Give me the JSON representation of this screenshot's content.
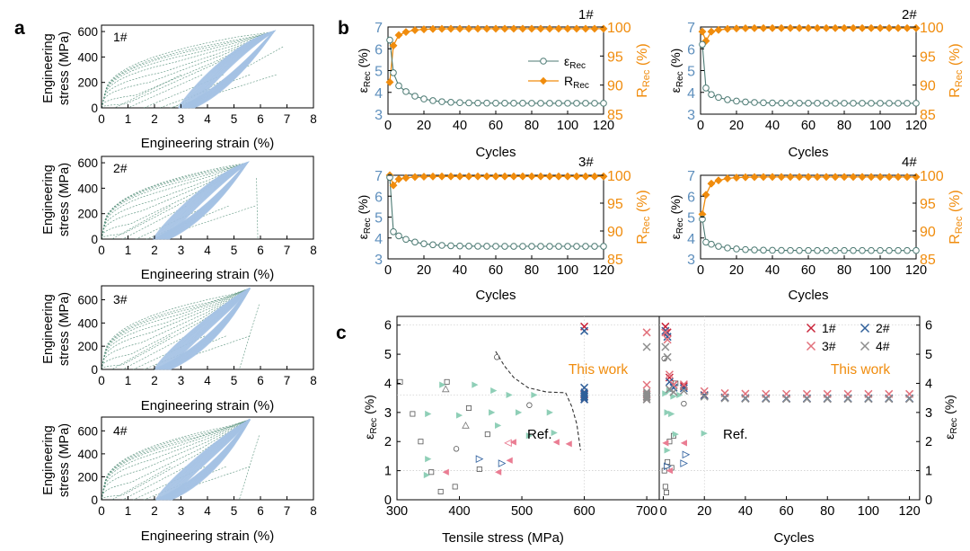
{
  "figure": {
    "panel_labels": [
      "a",
      "b",
      "c"
    ]
  },
  "colors": {
    "loop": "#a4c2e4",
    "loop_dash": "#4e8b74",
    "eps": "#4c7a73",
    "eps_axis": "#5e8fbd",
    "rr": "#f08c0d",
    "x1": "#c8243a",
    "x2": "#2f5f9a",
    "x3": "#e2717c",
    "x4": "#8d8d8d",
    "ref_green": "#8fcfb7",
    "ref_pink": "#ea7d93",
    "ref_blue": "#3c6aa5",
    "grid": "#c9c9c9"
  },
  "chart_data": [
    {
      "id": "a1",
      "type": "line",
      "annotation": "1#",
      "xlabel": "Engineering strain (%)",
      "ylabel": [
        "Engineering",
        "stress (MPa)"
      ],
      "xlim": [
        0,
        8
      ],
      "ylim": [
        0,
        650
      ],
      "xticks": [
        "0",
        "1",
        "2",
        "3",
        "4",
        "5",
        "6",
        "7",
        "8"
      ],
      "yticks": [
        "0",
        "200",
        "400",
        "600"
      ],
      "loop": {
        "residual": 2.9,
        "max_strain": 6.5,
        "max_stress": 600,
        "lower_knee": [
          4.5,
          140
        ],
        "upper_knee": [
          5.0,
          520
        ]
      },
      "loading_curves": [
        [
          0.9,
          30
        ],
        [
          1.3,
          100
        ],
        [
          1.8,
          200
        ],
        [
          2.3,
          280
        ],
        [
          2.8,
          360
        ],
        [
          3.3,
          420
        ],
        [
          3.9,
          470
        ],
        [
          4.5,
          510
        ],
        [
          5.2,
          560
        ]
      ],
      "unloading_curves": [
        [
          1.4,
          0.5
        ],
        [
          2.2,
          1.0
        ],
        [
          3.0,
          1.6
        ],
        [
          4.0,
          2.2
        ],
        [
          5.0,
          2.6
        ]
      ],
      "first_unload_bottom": 2.7
    },
    {
      "id": "a2",
      "type": "line",
      "annotation": "2#",
      "xlabel": "Engineering strain (%)",
      "ylabel": [
        "Engineering",
        "stress (MPa)"
      ],
      "xlim": [
        0,
        8
      ],
      "ylim": [
        0,
        650
      ],
      "xticks": [
        "0",
        "1",
        "2",
        "3",
        "4",
        "5",
        "6",
        "7",
        "8"
      ],
      "yticks": [
        "0",
        "200",
        "400",
        "600"
      ],
      "loop": {
        "residual": 1.95,
        "max_strain": 5.5,
        "max_stress": 600,
        "lower_knee": [
          3.6,
          150
        ],
        "upper_knee": [
          4.2,
          520
        ]
      },
      "loading_curves": [
        [
          0.8,
          40
        ],
        [
          1.1,
          120
        ],
        [
          1.5,
          220
        ],
        [
          1.9,
          300
        ],
        [
          2.3,
          380
        ],
        [
          2.8,
          440
        ],
        [
          3.4,
          490
        ],
        [
          4.0,
          530
        ],
        [
          4.7,
          570
        ]
      ],
      "unloading_curves": [
        [
          1.0,
          0.4
        ],
        [
          1.6,
          0.8
        ],
        [
          2.4,
          1.3
        ],
        [
          3.2,
          1.7
        ],
        [
          4.2,
          2.0
        ]
      ],
      "first_unload_bottom": 5.9
    },
    {
      "id": "a3",
      "type": "line",
      "annotation": "3#",
      "xlabel": "Engineering strain (%)",
      "ylabel": [
        "Engineering",
        "stress (MPa)"
      ],
      "xlim": [
        0,
        8
      ],
      "ylim": [
        0,
        720
      ],
      "xticks": [
        "0",
        "1",
        "2",
        "3",
        "4",
        "5",
        "6",
        "7",
        "8"
      ],
      "yticks": [
        "0",
        "200",
        "400",
        "600"
      ],
      "loop": {
        "residual": 2.0,
        "max_strain": 5.6,
        "max_stress": 700,
        "lower_knee": [
          3.9,
          180
        ],
        "upper_knee": [
          4.5,
          560
        ]
      },
      "loading_curves": [
        [
          0.8,
          40
        ],
        [
          1.1,
          130
        ],
        [
          1.5,
          230
        ],
        [
          1.9,
          320
        ],
        [
          2.4,
          400
        ],
        [
          2.9,
          470
        ],
        [
          3.5,
          530
        ],
        [
          4.1,
          580
        ],
        [
          4.8,
          640
        ]
      ],
      "unloading_curves": [
        [
          1.0,
          0.4
        ],
        [
          1.6,
          0.8
        ],
        [
          2.3,
          1.2
        ],
        [
          3.1,
          1.6
        ],
        [
          4.0,
          1.9
        ]
      ],
      "first_unload_bottom": 5.2
    },
    {
      "id": "a4",
      "type": "line",
      "annotation": "4#",
      "xlabel": "Engineering strain (%)",
      "ylabel": [
        "Engineering",
        "stress (MPa)"
      ],
      "xlim": [
        0,
        8
      ],
      "ylim": [
        0,
        720
      ],
      "xticks": [
        "0",
        "1",
        "2",
        "3",
        "4",
        "5",
        "6",
        "7",
        "8"
      ],
      "yticks": [
        "0",
        "200",
        "400",
        "600"
      ],
      "loop": {
        "residual": 2.05,
        "max_strain": 5.6,
        "max_stress": 700,
        "lower_knee": [
          3.9,
          180
        ],
        "upper_knee": [
          4.5,
          560
        ]
      },
      "loading_curves": [
        [
          0.8,
          40
        ],
        [
          1.1,
          150
        ],
        [
          1.5,
          260
        ],
        [
          1.9,
          350
        ],
        [
          2.4,
          430
        ],
        [
          2.9,
          490
        ],
        [
          3.5,
          540
        ],
        [
          4.1,
          590
        ],
        [
          4.8,
          640
        ]
      ],
      "unloading_curves": [
        [
          1.0,
          0.4
        ],
        [
          1.6,
          0.8
        ],
        [
          2.3,
          1.2
        ],
        [
          3.1,
          1.6
        ],
        [
          4.0,
          1.9
        ]
      ],
      "first_unload_bottom": 5.2
    },
    {
      "id": "b1",
      "type": "line",
      "annotation": "1#",
      "xlabel": "Cycles",
      "ylabel_left": "εRec (%)",
      "ylabel_right": "RRec (%)",
      "xlim": [
        0,
        120
      ],
      "ylim_left": [
        3,
        7
      ],
      "ylim_right": [
        85,
        100
      ],
      "xticks": [
        "0",
        "20",
        "40",
        "60",
        "80",
        "100",
        "120"
      ],
      "yticks_left": [
        "3",
        "4",
        "5",
        "6",
        "7"
      ],
      "yticks_right": [
        "85",
        "90",
        "95",
        "100"
      ],
      "legend": [
        "εRec",
        "RRec"
      ],
      "series": [
        {
          "name": "εRec",
          "start": 6.4,
          "plateau": 3.5,
          "second": 4.9,
          "third": 4.3
        },
        {
          "name": "RRec",
          "start": 90.5,
          "plateau": 99.7,
          "second": 96.8,
          "third": 98.6
        }
      ]
    },
    {
      "id": "b2",
      "type": "line",
      "annotation": "2#",
      "xlabel": "Cycles",
      "ylabel_left": "εRec (%)",
      "ylabel_right": "RRec (%)",
      "xlim": [
        0,
        120
      ],
      "ylim_left": [
        3,
        7
      ],
      "ylim_right": [
        85,
        100
      ],
      "xticks": [
        "0",
        "20",
        "40",
        "60",
        "80",
        "100",
        "120"
      ],
      "yticks_left": [
        "3",
        "4",
        "5",
        "6",
        "7"
      ],
      "yticks_right": [
        "85",
        "90",
        "95",
        "100"
      ],
      "series": [
        {
          "name": "εRec",
          "start": 6.2,
          "plateau": 3.5,
          "second": 4.2,
          "third": 3.9
        },
        {
          "name": "RRec",
          "start": 99.2,
          "plateau": 99.8,
          "second": 97.6,
          "third": 99.2
        }
      ]
    },
    {
      "id": "b3",
      "type": "line",
      "annotation": "3#",
      "xlabel": "Cycles",
      "ylabel_left": "εRec (%)",
      "ylabel_right": "RRec (%)",
      "xlim": [
        0,
        120
      ],
      "ylim_left": [
        3,
        7
      ],
      "ylim_right": [
        85,
        100
      ],
      "xticks": [
        "0",
        "20",
        "40",
        "60",
        "80",
        "100",
        "120"
      ],
      "yticks_left": [
        "3",
        "4",
        "5",
        "6",
        "7"
      ],
      "yticks_right": [
        "85",
        "90",
        "95",
        "100"
      ],
      "series": [
        {
          "name": "εRec",
          "start": 6.9,
          "plateau": 3.6,
          "second": 4.3,
          "third": 4.1
        },
        {
          "name": "RRec",
          "start": 100.0,
          "plateau": 99.8,
          "second": 98.2,
          "third": 99.3
        }
      ]
    },
    {
      "id": "b4",
      "type": "line",
      "annotation": "4#",
      "xlabel": "Cycles",
      "ylabel_left": "εRec (%)",
      "ylabel_right": "RRec (%)",
      "xlim": [
        0,
        120
      ],
      "ylim_left": [
        3,
        7
      ],
      "ylim_right": [
        85,
        100
      ],
      "xticks": [
        "0",
        "20",
        "40",
        "60",
        "80",
        "100",
        "120"
      ],
      "yticks_left": [
        "3",
        "4",
        "5",
        "6",
        "7"
      ],
      "yticks_right": [
        "85",
        "90",
        "95",
        "100"
      ],
      "series": [
        {
          "name": "εRec",
          "start": 4.9,
          "plateau": 3.4,
          "second": 3.8,
          "third": 3.7
        },
        {
          "name": "RRec",
          "start": 93.0,
          "plateau": 99.7,
          "second": 96.5,
          "third": 98.5
        }
      ]
    },
    {
      "id": "c_left",
      "type": "scatter",
      "xlabel": "Tensile stress (MPa)",
      "ylabel": "εRec (%)",
      "xlim": [
        300,
        720
      ],
      "ylim": [
        0,
        6.3
      ],
      "xticks": [
        "300",
        "400",
        "500",
        "600",
        "700"
      ],
      "yticks": [
        "0",
        "1",
        "2",
        "3",
        "4",
        "5",
        "6"
      ],
      "annotations": [
        "This work",
        "Ref."
      ],
      "this_work": [
        {
          "series": "1#",
          "x": 600,
          "y": [
            5.95,
            3.62
          ]
        },
        {
          "series": "2#",
          "x": 600,
          "y": [
            5.8,
            3.85,
            3.55,
            3.45
          ]
        },
        {
          "series": "3#",
          "x": 700,
          "y": [
            5.75,
            3.95,
            3.62
          ]
        },
        {
          "series": "4#",
          "x": 700,
          "y": [
            5.25,
            3.55,
            3.45
          ]
        }
      ],
      "ref_points": [
        {
          "m": "sq",
          "x": 305,
          "y": 4.05
        },
        {
          "m": "sq",
          "x": 325,
          "y": 2.95
        },
        {
          "m": "sq",
          "x": 338,
          "y": 2.0
        },
        {
          "m": "sq",
          "x": 355,
          "y": 0.95
        },
        {
          "m": "sq",
          "x": 370,
          "y": 0.28
        },
        {
          "m": "sq",
          "x": 380,
          "y": 4.05
        },
        {
          "m": "sq",
          "x": 393,
          "y": 0.45
        },
        {
          "m": "sq",
          "x": 415,
          "y": 3.15
        },
        {
          "m": "sq",
          "x": 432,
          "y": 1.05
        },
        {
          "m": "sq",
          "x": 445,
          "y": 2.25
        },
        {
          "m": "ci",
          "x": 395,
          "y": 1.75
        },
        {
          "m": "ci",
          "x": 460,
          "y": 4.9
        },
        {
          "m": "ci",
          "x": 512,
          "y": 3.25
        },
        {
          "m": "tu",
          "x": 410,
          "y": 2.55
        },
        {
          "m": "tu",
          "x": 378,
          "y": 3.8
        },
        {
          "m": "gr",
          "x": 350,
          "y": 2.95
        },
        {
          "m": "gr",
          "x": 373,
          "y": 3.95
        },
        {
          "m": "gr",
          "x": 400,
          "y": 2.9
        },
        {
          "m": "gr",
          "x": 425,
          "y": 3.95
        },
        {
          "m": "gr",
          "x": 452,
          "y": 3.0
        },
        {
          "m": "gr",
          "x": 455,
          "y": 3.75
        },
        {
          "m": "gr",
          "x": 462,
          "y": 2.55
        },
        {
          "m": "gr",
          "x": 480,
          "y": 3.6
        },
        {
          "m": "gr",
          "x": 495,
          "y": 3.0
        },
        {
          "m": "gr",
          "x": 512,
          "y": 2.2
        },
        {
          "m": "gr",
          "x": 520,
          "y": 3.6
        },
        {
          "m": "gr",
          "x": 545,
          "y": 3.0
        },
        {
          "m": "gr",
          "x": 552,
          "y": 2.3
        },
        {
          "m": "gr",
          "x": 350,
          "y": 1.4
        },
        {
          "m": "gr",
          "x": 348,
          "y": 0.85
        },
        {
          "m": "pk",
          "x": 378,
          "y": 0.95
        },
        {
          "m": "pk",
          "x": 462,
          "y": 0.95
        },
        {
          "m": "pk",
          "x": 480,
          "y": 1.35
        },
        {
          "m": "pk",
          "x": 486,
          "y": 1.98
        },
        {
          "m": "pk",
          "x": 555,
          "y": 1.98
        },
        {
          "m": "pk",
          "x": 575,
          "y": 1.92
        },
        {
          "m": "bl",
          "x": 468,
          "y": 1.25
        },
        {
          "m": "bl",
          "x": 432,
          "y": 1.4
        },
        {
          "m": "pko",
          "x": 478,
          "y": 1.95
        }
      ],
      "boundary": [
        [
          458,
          5.1
        ],
        [
          472,
          4.6
        ],
        [
          487,
          4.2
        ],
        [
          510,
          3.85
        ],
        [
          540,
          3.7
        ],
        [
          570,
          3.68
        ],
        [
          580,
          3.2
        ],
        [
          588,
          2.6
        ],
        [
          594,
          1.7
        ]
      ]
    },
    {
      "id": "c_right",
      "type": "scatter",
      "xlabel": "Cycles",
      "ylabel": "εRec (%)",
      "xlim": [
        -2,
        125
      ],
      "ylim": [
        0,
        6.3
      ],
      "xticks": [
        "0",
        "20",
        "40",
        "60",
        "80",
        "100",
        "120"
      ],
      "yticks": [
        "0",
        "1",
        "2",
        "3",
        "4",
        "5",
        "6"
      ],
      "legend": [
        "1#",
        "2#",
        "3#",
        "4#"
      ],
      "annotations": [
        "This work",
        "Ref."
      ],
      "this_work_cycles": [
        1,
        2,
        3,
        5,
        10,
        20,
        30,
        40,
        50,
        60,
        70,
        80,
        90,
        100,
        110,
        120
      ],
      "series": [
        {
          "name": "1#",
          "first": [
            5.95,
            5.75,
            4.2,
            3.95
          ],
          "plateau": 3.52
        },
        {
          "name": "2#",
          "first": [
            5.8,
            5.6,
            4.05,
            3.85
          ],
          "plateau": 3.5
        },
        {
          "name": "3#",
          "first": [
            5.75,
            5.5,
            4.3,
            3.95
          ],
          "plateau": 3.62
        },
        {
          "name": "4#",
          "first": [
            5.25,
            4.9,
            3.8,
            3.7
          ],
          "plateau": 3.42
        }
      ],
      "ref_points": [
        {
          "m": "sq",
          "x": 0.5,
          "y": 1.0
        },
        {
          "m": "sq",
          "x": 1.0,
          "y": 0.45
        },
        {
          "m": "sq",
          "x": 1.5,
          "y": 0.25
        },
        {
          "m": "sq",
          "x": 2.0,
          "y": 1.3
        },
        {
          "m": "sq",
          "x": 3.0,
          "y": 2.0
        },
        {
          "m": "sq",
          "x": 4.0,
          "y": 1.1
        },
        {
          "m": "sq",
          "x": 5.0,
          "y": 2.2
        },
        {
          "m": "sq",
          "x": 6.0,
          "y": 4.0
        },
        {
          "m": "ci",
          "x": 0.5,
          "y": 4.85
        },
        {
          "m": "ci",
          "x": 10,
          "y": 3.3
        },
        {
          "m": "gr",
          "x": 1.0,
          "y": 3.65
        },
        {
          "m": "gr",
          "x": 2.0,
          "y": 3.0
        },
        {
          "m": "gr",
          "x": 3.0,
          "y": 3.75
        },
        {
          "m": "gr",
          "x": 4.0,
          "y": 2.95
        },
        {
          "m": "gr",
          "x": 5.0,
          "y": 3.55
        },
        {
          "m": "gr",
          "x": 6.0,
          "y": 2.25
        },
        {
          "m": "gr",
          "x": 8.0,
          "y": 3.6
        },
        {
          "m": "gr",
          "x": 20,
          "y": 2.28
        },
        {
          "m": "gr",
          "x": 2.0,
          "y": 1.7
        },
        {
          "m": "pk",
          "x": 1.0,
          "y": 1.95
        },
        {
          "m": "pk",
          "x": 3.0,
          "y": 1.0
        },
        {
          "m": "pk",
          "x": 10,
          "y": 1.95
        },
        {
          "m": "bl",
          "x": 10,
          "y": 1.25
        },
        {
          "m": "bl",
          "x": 11,
          "y": 1.55
        },
        {
          "m": "bl",
          "x": 2.0,
          "y": 1.15
        }
      ]
    }
  ]
}
